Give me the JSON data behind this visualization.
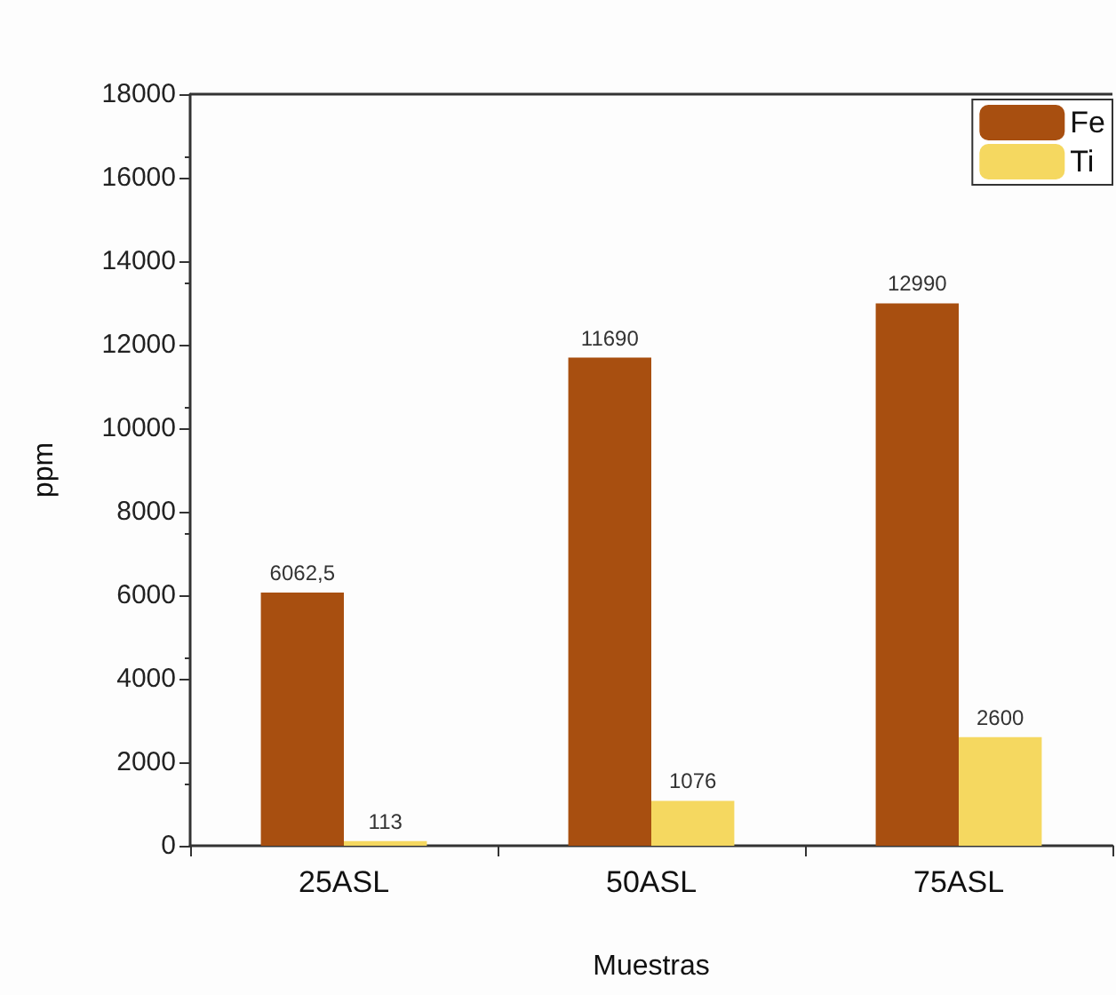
{
  "chart_data": {
    "type": "bar",
    "xlabel": "Muestras",
    "ylabel": "ppm",
    "categories": [
      "25ASL",
      "50ASL",
      "75ASL"
    ],
    "series": [
      {
        "name": "Fe",
        "color": "#a84f10",
        "values": [
          6062.5,
          11690,
          12990
        ],
        "value_labels": [
          "6062,5",
          "11690",
          "12990"
        ]
      },
      {
        "name": "Ti",
        "color": "#f5d860",
        "values": [
          113,
          1076,
          2600
        ],
        "value_labels": [
          "113",
          "1076",
          "2600"
        ]
      }
    ],
    "ylim": [
      0,
      18000
    ],
    "yticks": [
      0,
      2000,
      4000,
      6000,
      8000,
      10000,
      12000,
      14000,
      16000,
      18000
    ],
    "grid": false,
    "legend": "top right"
  }
}
